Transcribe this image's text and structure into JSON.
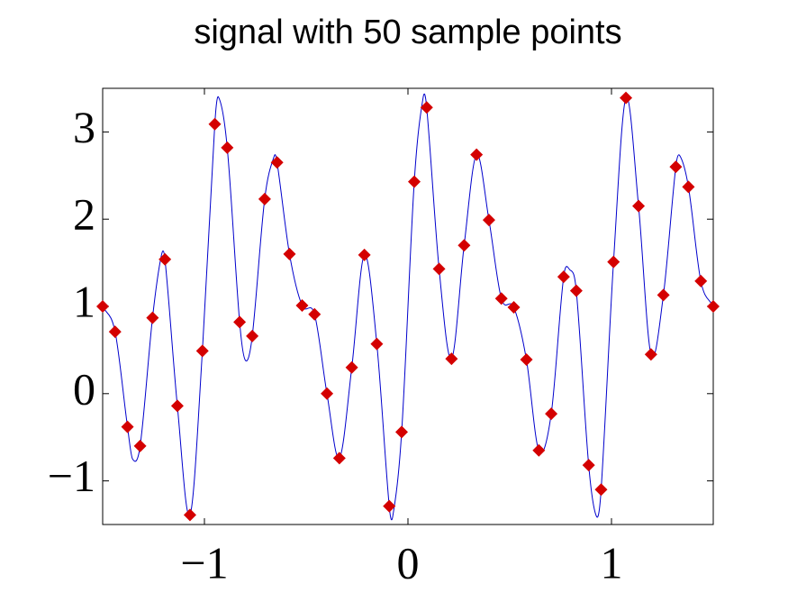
{
  "chart_data": {
    "type": "line",
    "title": "signal with 50 sample points",
    "xlim": [
      -1.5,
      1.5
    ],
    "ylim": [
      -1.5,
      3.5
    ],
    "xticks": [
      {
        "value": -1,
        "label": "−1"
      },
      0,
      1
    ],
    "yticks": [
      {
        "value": -1,
        "label": "−1"
      },
      0,
      1,
      2,
      3
    ],
    "series": [
      {
        "color": "#0000cc",
        "style": "line",
        "x": [
          -1.5,
          -1.439,
          -1.378,
          -1.353,
          -1.316,
          -1.255,
          -1.211,
          -1.194,
          -1.133,
          -1.071,
          -1.01,
          -0.949,
          -0.931,
          -0.888,
          -0.827,
          -0.798,
          -0.765,
          -0.704,
          -0.656,
          -0.643,
          -0.582,
          -0.52,
          -0.459,
          -0.398,
          -0.337,
          -0.276,
          -0.214,
          -0.153,
          -0.092,
          -0.075,
          -0.031,
          0.031,
          0.075,
          0.092,
          0.153,
          0.214,
          0.276,
          0.337,
          0.398,
          0.459,
          0.52,
          0.582,
          0.643,
          0.704,
          0.765,
          0.795,
          0.827,
          0.888,
          0.927,
          0.949,
          1.01,
          1.071,
          1.133,
          1.194,
          1.255,
          1.316,
          1.335,
          1.378,
          1.439,
          1.5
        ],
        "values": [
          1.0,
          0.71,
          -0.38,
          -0.75,
          -0.6,
          0.87,
          1.59,
          1.54,
          -0.14,
          -1.39,
          0.49,
          3.09,
          3.4,
          2.82,
          0.82,
          0.38,
          0.66,
          2.23,
          2.73,
          2.65,
          1.6,
          1.01,
          0.91,
          0.0,
          -0.74,
          0.3,
          1.59,
          0.57,
          -1.29,
          -1.41,
          -0.44,
          2.43,
          3.4,
          3.28,
          1.43,
          0.4,
          1.7,
          2.74,
          1.99,
          1.09,
          0.99,
          0.39,
          -0.65,
          -0.23,
          1.34,
          1.42,
          1.18,
          -0.82,
          -1.41,
          -1.1,
          1.51,
          3.39,
          2.15,
          0.45,
          1.13,
          2.6,
          2.73,
          2.37,
          1.29,
          1.0
        ]
      },
      {
        "color": "#d40000",
        "style": "markers",
        "marker": "diamond",
        "x": [
          -1.5,
          -1.439,
          -1.378,
          -1.316,
          -1.255,
          -1.194,
          -1.133,
          -1.071,
          -1.01,
          -0.949,
          -0.888,
          -0.827,
          -0.765,
          -0.704,
          -0.643,
          -0.582,
          -0.52,
          -0.459,
          -0.398,
          -0.337,
          -0.276,
          -0.214,
          -0.153,
          -0.092,
          -0.031,
          0.031,
          0.092,
          0.153,
          0.214,
          0.276,
          0.337,
          0.398,
          0.459,
          0.52,
          0.582,
          0.643,
          0.704,
          0.765,
          0.827,
          0.888,
          0.949,
          1.01,
          1.071,
          1.133,
          1.194,
          1.255,
          1.316,
          1.378,
          1.439,
          1.5
        ],
        "values": [
          1.0,
          0.71,
          -0.38,
          -0.6,
          0.87,
          1.54,
          -0.14,
          -1.39,
          0.49,
          3.09,
          2.82,
          0.82,
          0.66,
          2.23,
          2.65,
          1.6,
          1.01,
          0.91,
          0.0,
          -0.74,
          0.3,
          1.59,
          0.57,
          -1.29,
          -0.44,
          2.43,
          3.28,
          1.43,
          0.4,
          1.7,
          2.74,
          1.99,
          1.09,
          0.99,
          0.39,
          -0.65,
          -0.23,
          1.34,
          1.18,
          -0.82,
          -1.1,
          1.51,
          3.39,
          2.15,
          0.45,
          1.13,
          2.6,
          2.37,
          1.29,
          1.0
        ]
      }
    ]
  }
}
